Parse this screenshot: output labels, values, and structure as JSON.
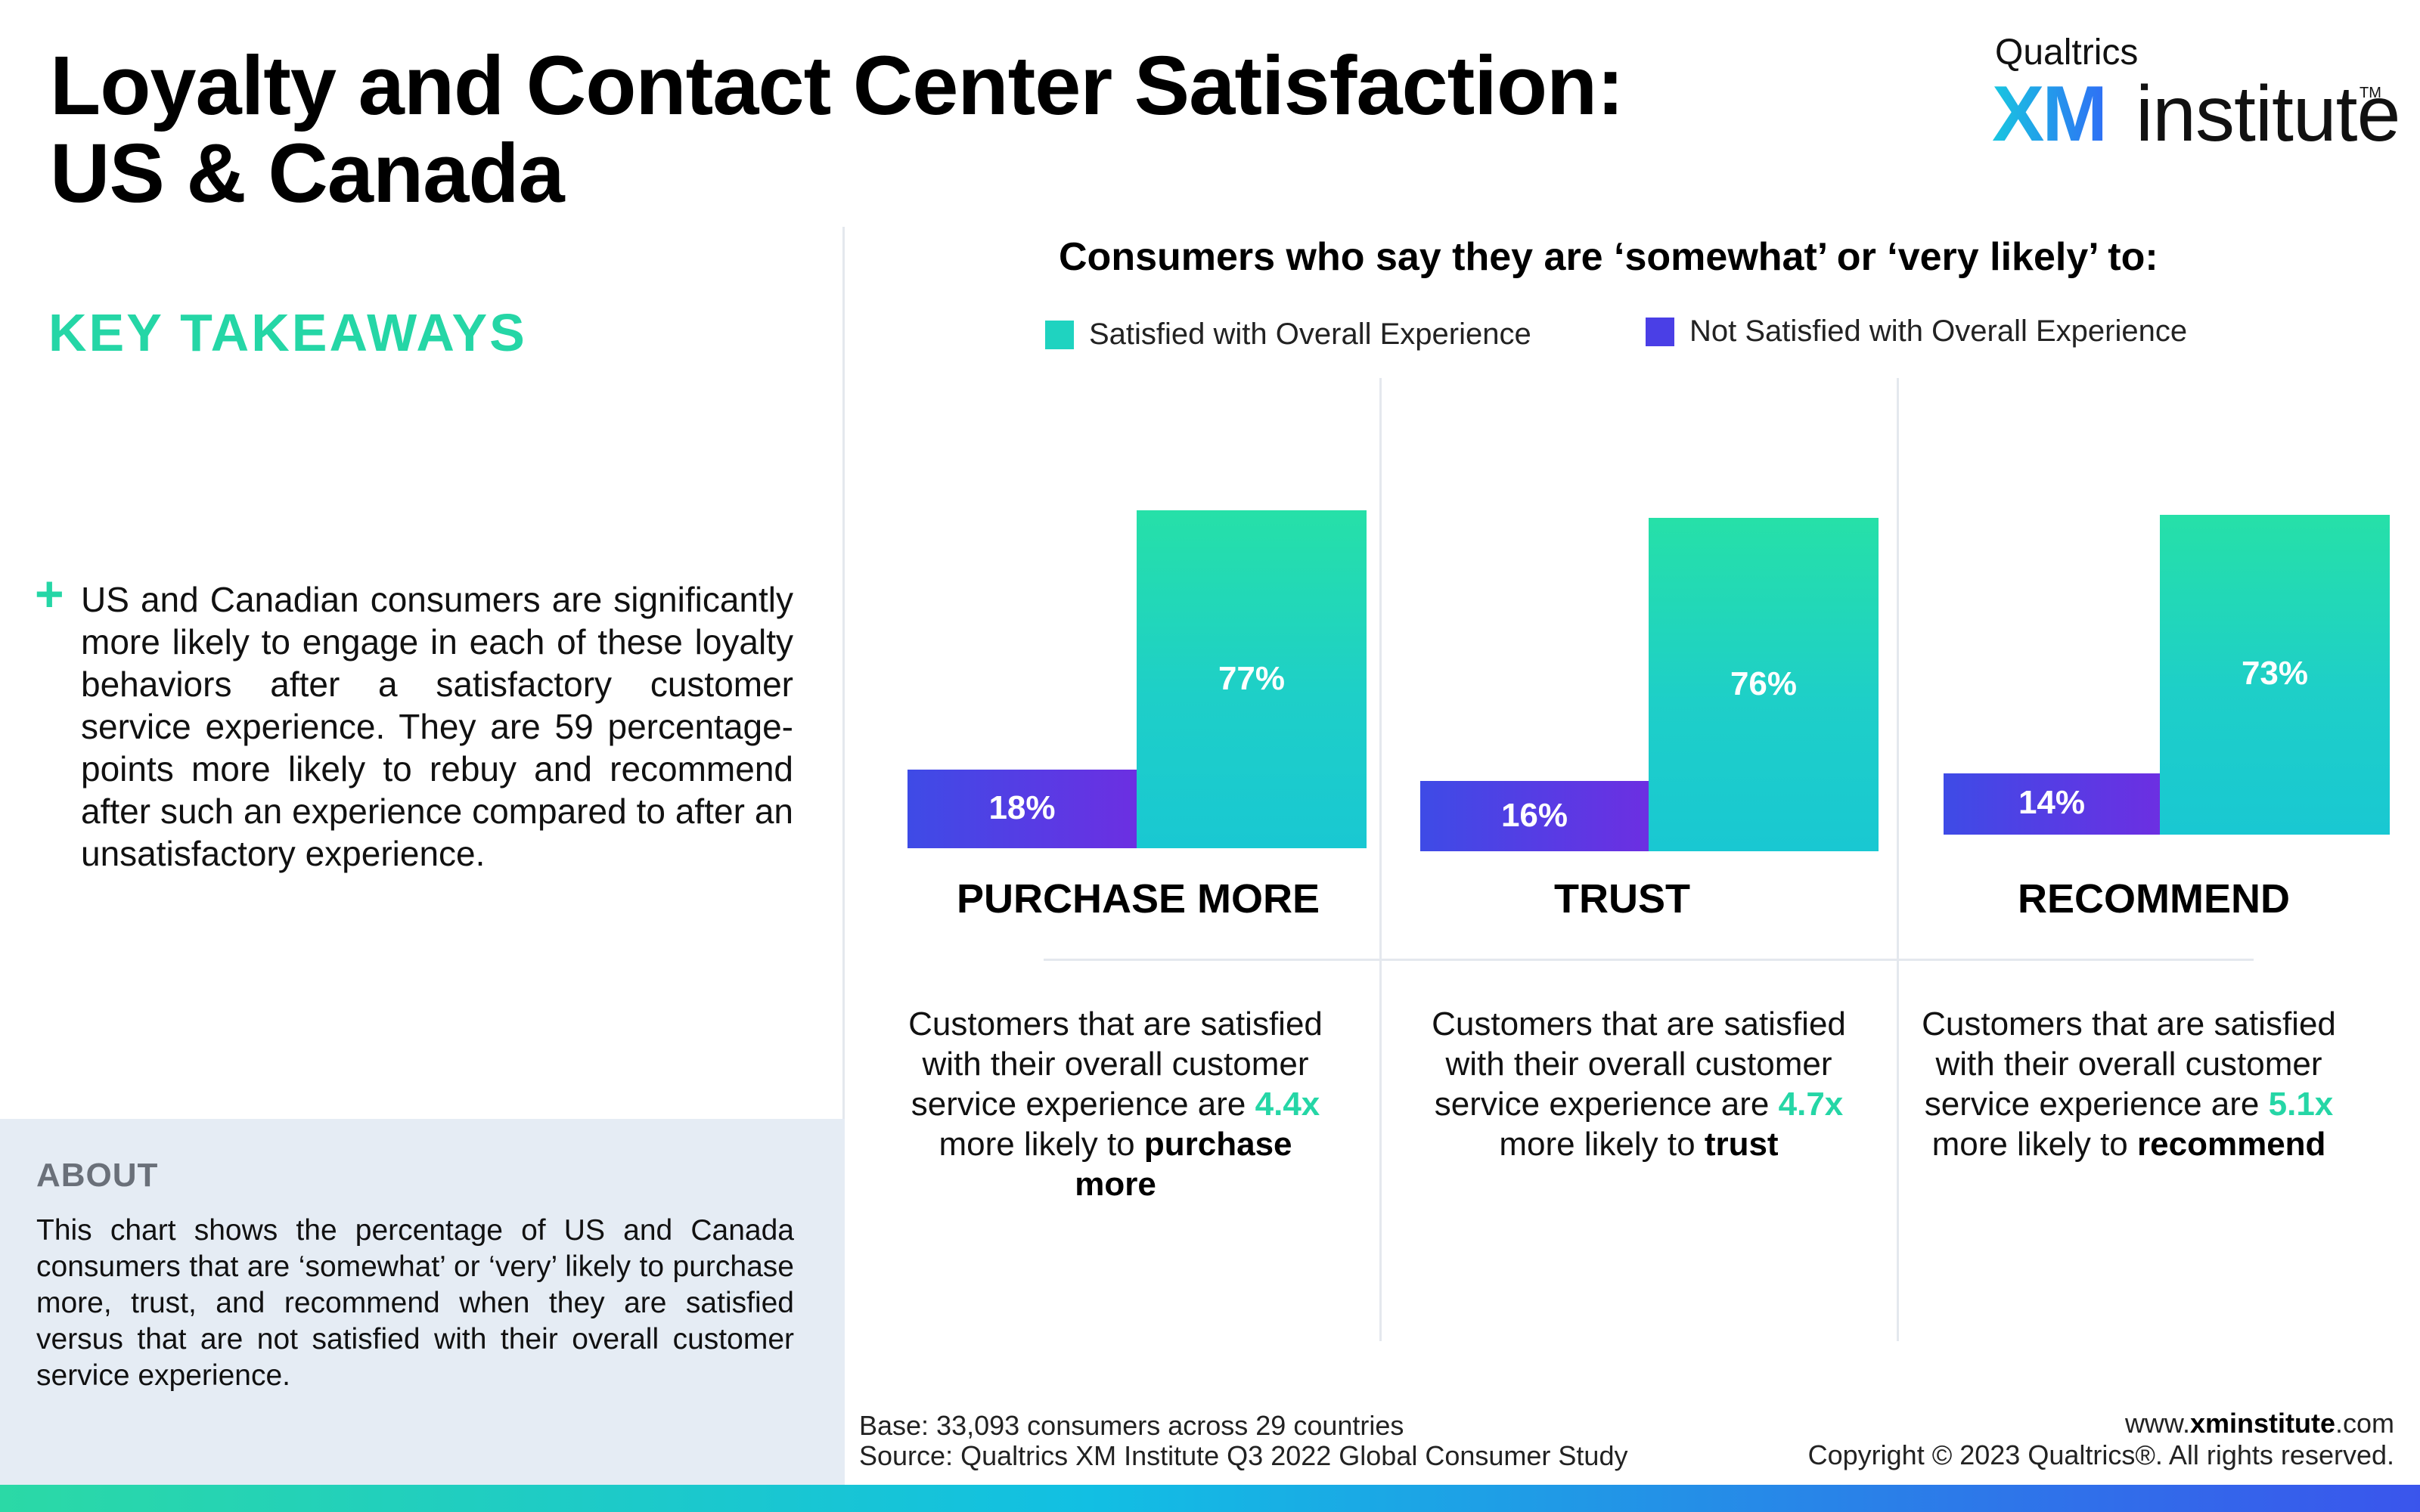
{
  "header": {
    "title_line1": "Loyalty and Contact Center Satisfaction:",
    "title_line2": "US & Canada"
  },
  "logo": {
    "company": "Qualtrics",
    "xm": "XM",
    "institute": "institute",
    "tm": "TM"
  },
  "takeaways": {
    "heading": "KEY TAKEAWAYS",
    "bullet_icon": "+",
    "text": "US and Canadian consumers are significantly more likely to engage in each of these loyalty behaviors after a satisfactory customer service experience. They are 59 percentage-points more likely to rebuy and recommend after such an experience compared to after an unsatisfactory experience."
  },
  "about": {
    "heading": "ABOUT",
    "text": "This chart shows the percentage of US and Canada consumers that are ‘somewhat’ or ‘very’ likely to purchase more, trust, and recommend when they are satisfied versus that are not satisfied with their overall customer service experience."
  },
  "chart_data": {
    "type": "bar",
    "title": "Consumers who say they are ‘somewhat’ or ‘very likely’ to:",
    "categories": [
      "PURCHASE MORE",
      "TRUST",
      "RECOMMEND"
    ],
    "series": [
      {
        "name": "Not Satisfied with Overall Experience",
        "values": [
          18,
          16,
          14
        ],
        "labels": [
          "18%",
          "16%",
          "14%"
        ],
        "color": "#4a3fe6"
      },
      {
        "name": "Satisfied with Overall Experience",
        "values": [
          77,
          76,
          73
        ],
        "labels": [
          "77%",
          "76%",
          "73%"
        ],
        "color": "#1fd3c0"
      }
    ],
    "legend_position": "top",
    "legend": [
      {
        "name": "Satisfied with Overall Experience",
        "color": "#1fd3c0"
      },
      {
        "name": "Not Satisfied with Overall Experience",
        "color": "#4a3fe6"
      }
    ],
    "grid": false
  },
  "descriptions": [
    {
      "pre": "Customers that are satisfied with their overall customer service experience are ",
      "multiplier": "4.4x",
      "mid": " more likely to ",
      "action": "purchase more"
    },
    {
      "pre": "Customers that are satisfied with their overall customer service experience are ",
      "multiplier": "4.7x",
      "mid": " more likely to ",
      "action": "trust"
    },
    {
      "pre": "Customers that are satisfied with their overall customer service experience are ",
      "multiplier": "5.1x",
      "mid": " more likely to ",
      "action": "recommend"
    }
  ],
  "footer": {
    "base": "Base: 33,093 consumers across 29 countries",
    "source": "Source: Qualtrics XM Institute Q3 2022 Global Consumer Study",
    "url_prefix": "www.",
    "url_domain": "xminstitute",
    "url_suffix": ".com",
    "copyright": "Copyright © 2023 Qualtrics®. All rights reserved."
  }
}
